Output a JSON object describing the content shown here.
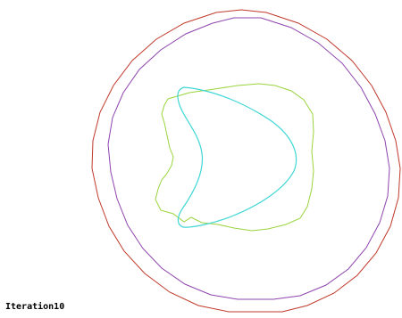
{
  "iteration_label": "Iteration10",
  "shapes": [
    {
      "name": "outer-circle",
      "color": "#c0392b"
    },
    {
      "name": "middle-circle",
      "color": "#8e44ad"
    },
    {
      "name": "green-contour",
      "color": "#9ad43d"
    },
    {
      "name": "cyan-contour",
      "color": "#3fd6d6"
    }
  ]
}
